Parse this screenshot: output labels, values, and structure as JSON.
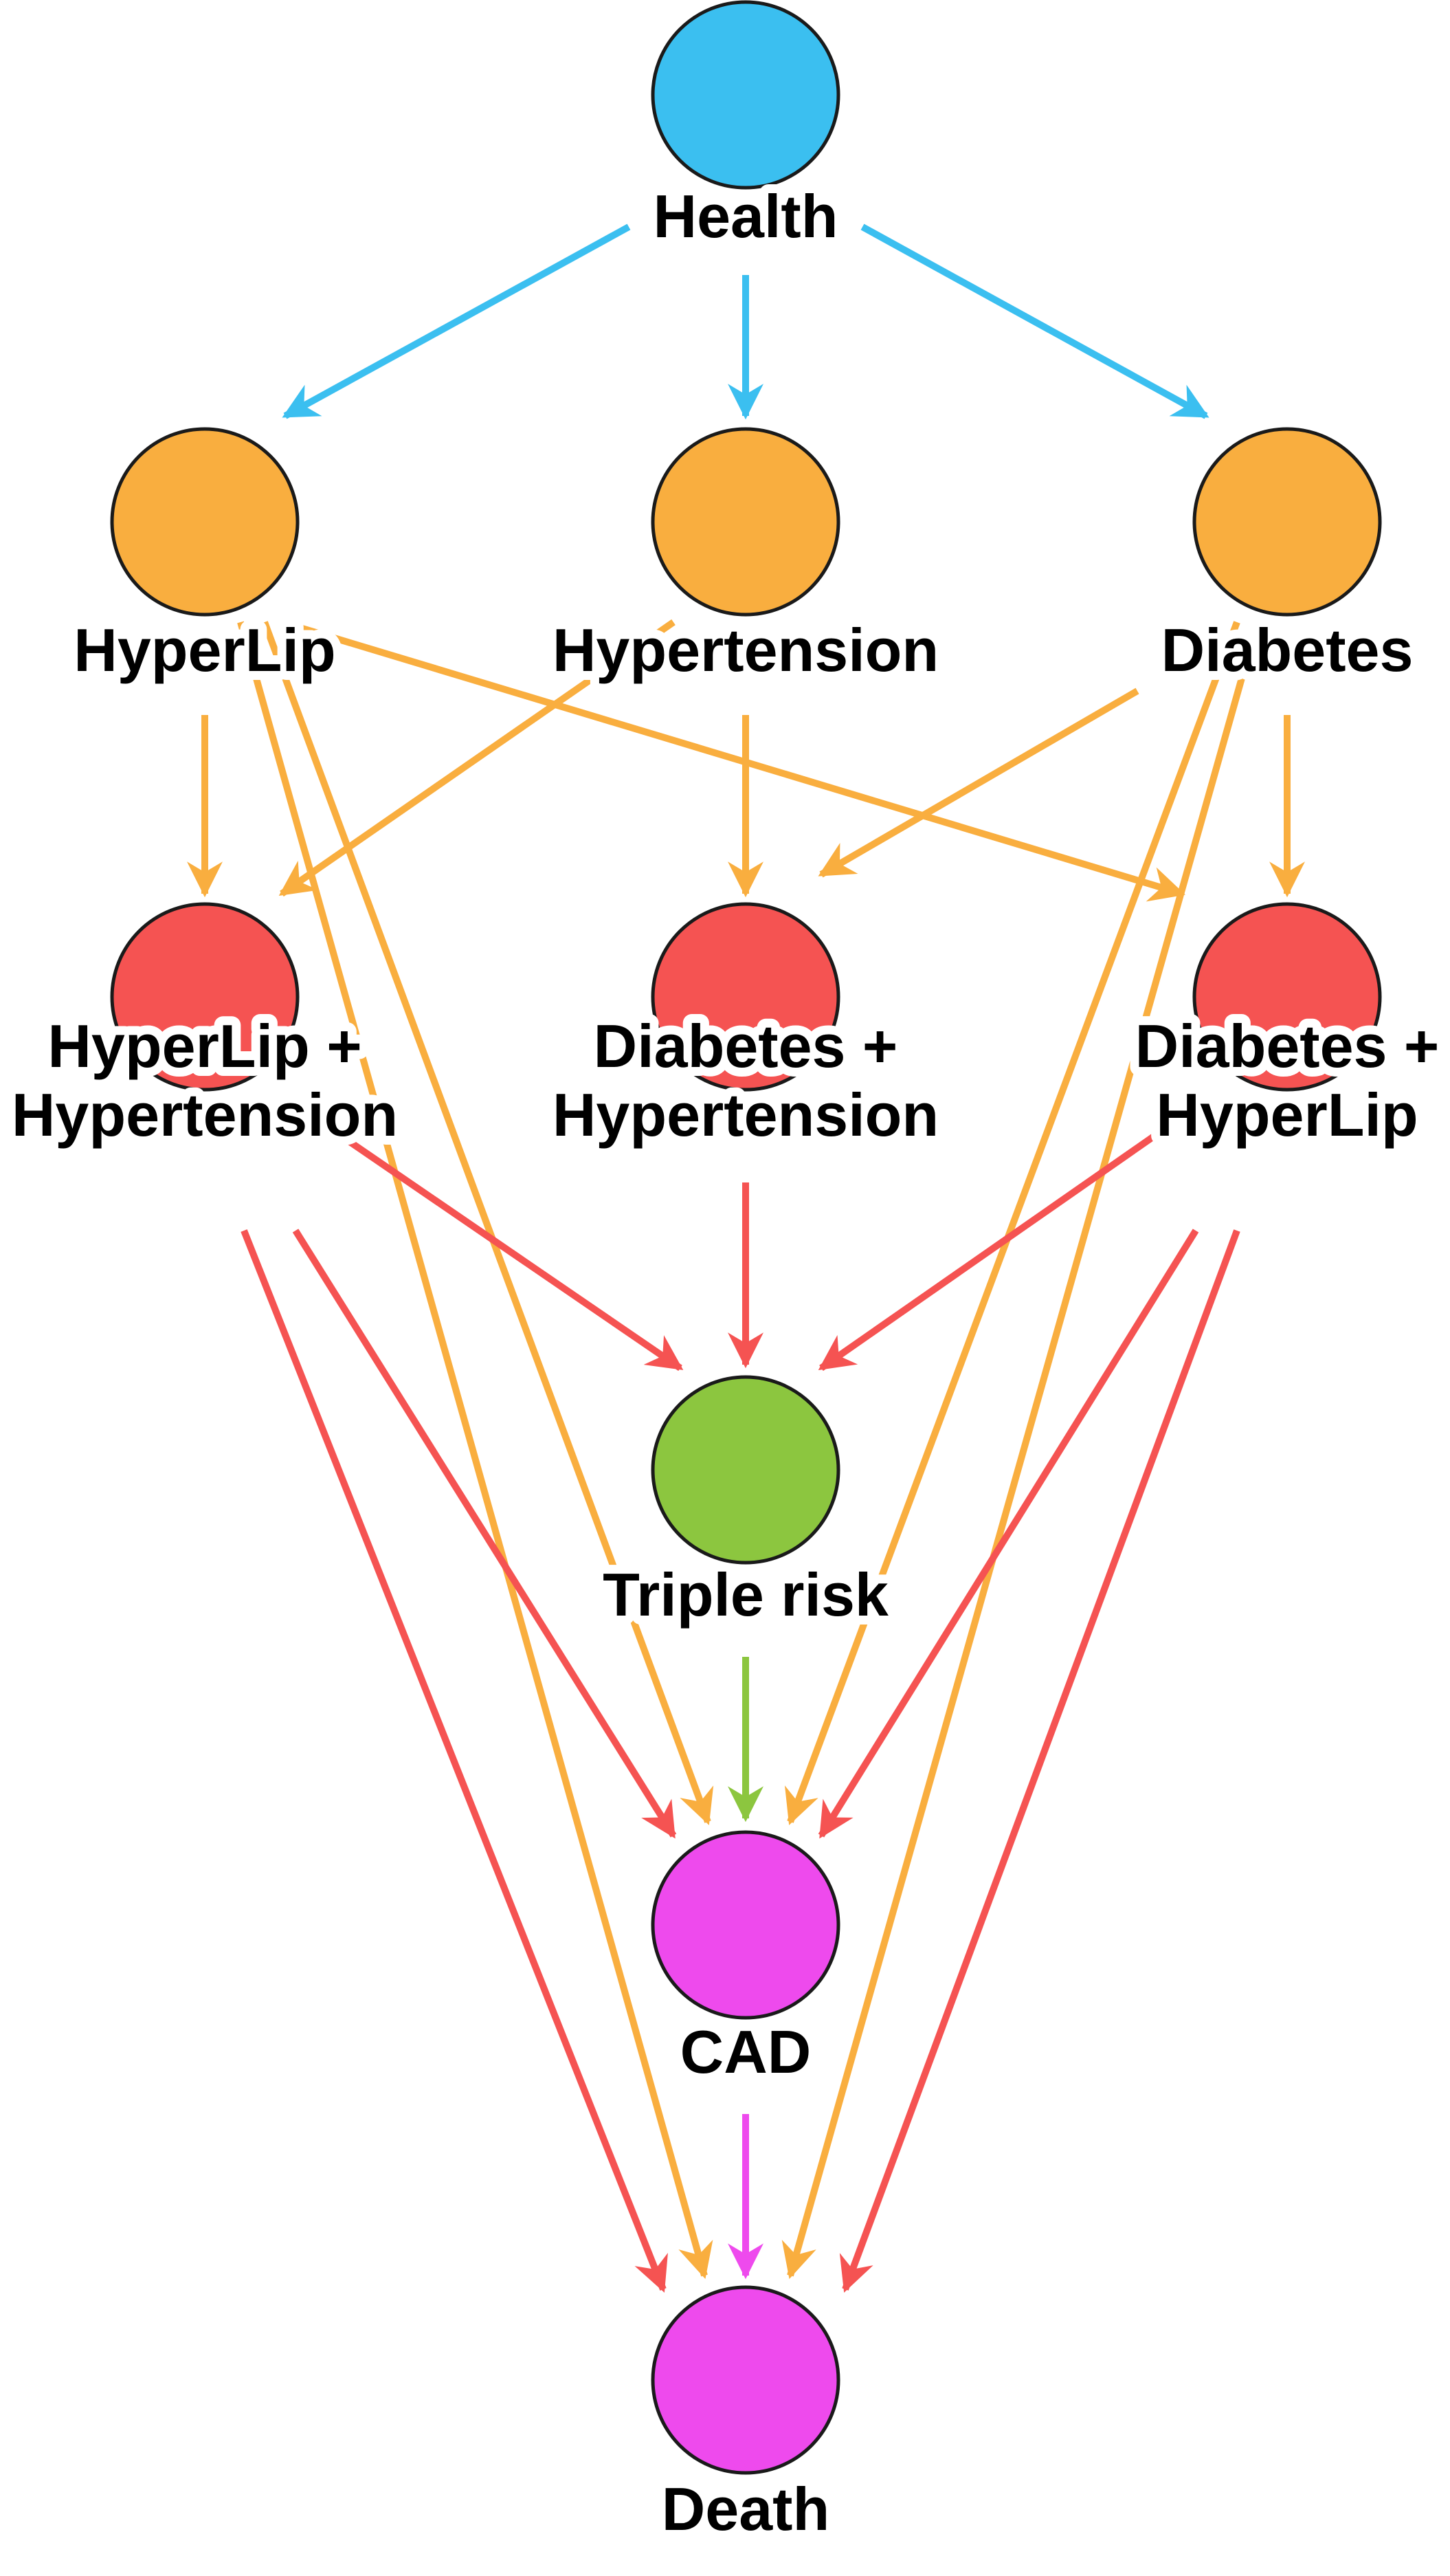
{
  "colors": {
    "health": "#3bbff0",
    "single": "#f9ae3f",
    "double": "#f55352",
    "triple": "#8cc63f",
    "outcome": "#ee4aed"
  },
  "nodes": [
    {
      "id": "health",
      "label_lines": [
        "Health"
      ],
      "color": "#3bbff0"
    },
    {
      "id": "hyperlip",
      "label_lines": [
        "HyperLip"
      ],
      "color": "#f9ae3f"
    },
    {
      "id": "hypertension",
      "label_lines": [
        "Hypertension"
      ],
      "color": "#f9ae3f"
    },
    {
      "id": "diabetes",
      "label_lines": [
        "Diabetes"
      ],
      "color": "#f9ae3f"
    },
    {
      "id": "hyperlip_hypertension",
      "label_lines": [
        "HyperLip +",
        "Hypertension"
      ],
      "color": "#f55352"
    },
    {
      "id": "diabetes_hypertension",
      "label_lines": [
        "Diabetes +",
        "Hypertension"
      ],
      "color": "#f55352"
    },
    {
      "id": "diabetes_hyperlip",
      "label_lines": [
        "Diabetes +",
        "HyperLip"
      ],
      "color": "#f55352"
    },
    {
      "id": "triple",
      "label_lines": [
        "Triple risk"
      ],
      "color": "#8cc63f"
    },
    {
      "id": "cad",
      "label_lines": [
        "CAD"
      ],
      "color": "#ee4aed"
    },
    {
      "id": "death",
      "label_lines": [
        "Death"
      ],
      "color": "#ee4aed"
    }
  ],
  "edges": [
    {
      "from": "health",
      "to": "hyperlip",
      "color": "#3bbff0"
    },
    {
      "from": "health",
      "to": "hypertension",
      "color": "#3bbff0"
    },
    {
      "from": "health",
      "to": "diabetes",
      "color": "#3bbff0"
    },
    {
      "from": "hyperlip",
      "to": "hyperlip_hypertension",
      "color": "#f9ae3f"
    },
    {
      "from": "hypertension",
      "to": "hyperlip_hypertension",
      "color": "#f9ae3f"
    },
    {
      "from": "hypertension",
      "to": "diabetes_hypertension",
      "color": "#f9ae3f"
    },
    {
      "from": "diabetes",
      "to": "diabetes_hypertension",
      "color": "#f9ae3f"
    },
    {
      "from": "hyperlip",
      "to": "diabetes_hyperlip",
      "color": "#f9ae3f"
    },
    {
      "from": "diabetes",
      "to": "diabetes_hyperlip",
      "color": "#f9ae3f"
    },
    {
      "from": "hyperlip",
      "to": "cad",
      "color": "#f9ae3f"
    },
    {
      "from": "hyperlip",
      "to": "death",
      "color": "#f9ae3f"
    },
    {
      "from": "diabetes",
      "to": "cad",
      "color": "#f9ae3f"
    },
    {
      "from": "diabetes",
      "to": "death",
      "color": "#f9ae3f"
    },
    {
      "from": "hyperlip_hypertension",
      "to": "triple",
      "color": "#f55352"
    },
    {
      "from": "diabetes_hypertension",
      "to": "triple",
      "color": "#f55352"
    },
    {
      "from": "diabetes_hyperlip",
      "to": "triple",
      "color": "#f55352"
    },
    {
      "from": "hyperlip_hypertension",
      "to": "cad",
      "color": "#f55352"
    },
    {
      "from": "hyperlip_hypertension",
      "to": "death",
      "color": "#f55352"
    },
    {
      "from": "diabetes_hyperlip",
      "to": "cad",
      "color": "#f55352"
    },
    {
      "from": "diabetes_hyperlip",
      "to": "death",
      "color": "#f55352"
    },
    {
      "from": "triple",
      "to": "cad",
      "color": "#8cc63f"
    },
    {
      "from": "cad",
      "to": "death",
      "color": "#ee4aed"
    }
  ]
}
